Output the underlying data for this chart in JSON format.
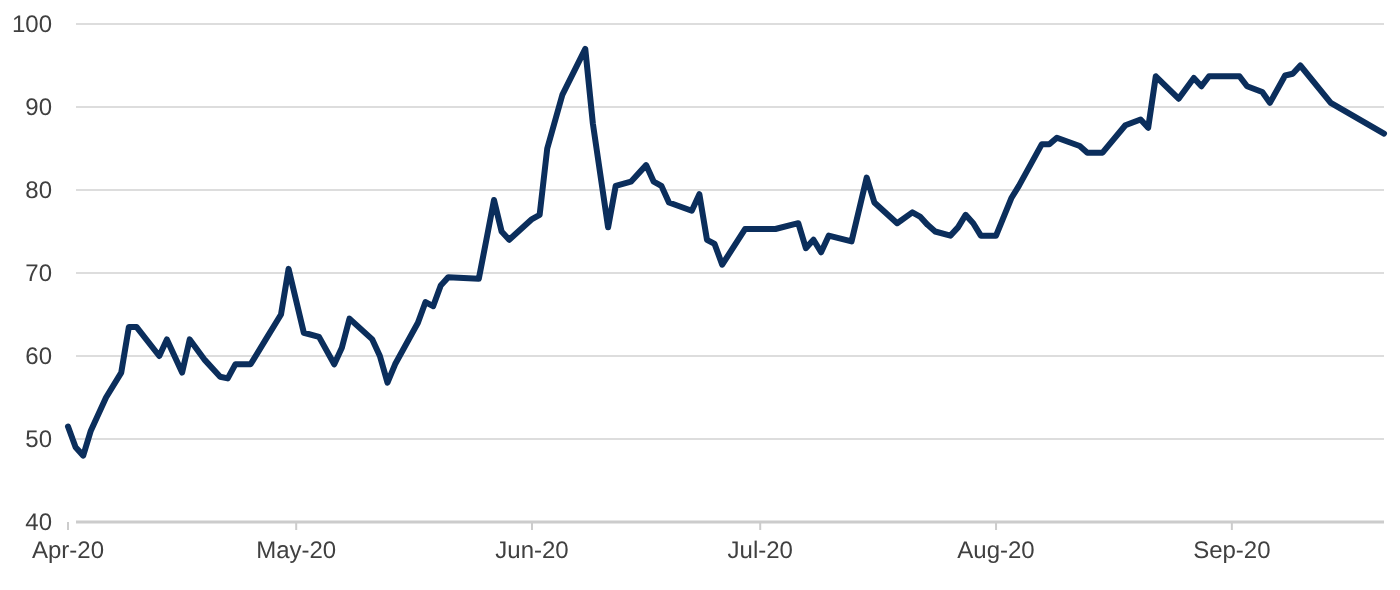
{
  "chart_data": {
    "type": "line",
    "xlim": [
      "2020-04-01",
      "2020-09-21"
    ],
    "xticks": [
      {
        "value": "2020-04-01",
        "label": "Apr-20"
      },
      {
        "value": "2020-05-01",
        "label": "May-20"
      },
      {
        "value": "2020-06-01",
        "label": "Jun-20"
      },
      {
        "value": "2020-07-01",
        "label": "Jul-20"
      },
      {
        "value": "2020-08-01",
        "label": "Aug-20"
      },
      {
        "value": "2020-09-01",
        "label": "Sep-20"
      }
    ],
    "ylim": [
      40,
      100
    ],
    "yticks": [
      40,
      50,
      60,
      70,
      80,
      90,
      100
    ],
    "grid": "y",
    "line_style": "solid",
    "marker": "none",
    "x": [
      "2020-04-01",
      "2020-04-02",
      "2020-04-03",
      "2020-04-04",
      "2020-04-06",
      "2020-04-08",
      "2020-04-09",
      "2020-04-10",
      "2020-04-13",
      "2020-04-14",
      "2020-04-16",
      "2020-04-17",
      "2020-04-19",
      "2020-04-21",
      "2020-04-22",
      "2020-04-23",
      "2020-04-25",
      "2020-04-27",
      "2020-04-29",
      "2020-04-30",
      "2020-05-02",
      "2020-05-04",
      "2020-05-06",
      "2020-05-07",
      "2020-05-08",
      "2020-05-11",
      "2020-05-12",
      "2020-05-13",
      "2020-05-14",
      "2020-05-17",
      "2020-05-18",
      "2020-05-19",
      "2020-05-20",
      "2020-05-21",
      "2020-05-25",
      "2020-05-26",
      "2020-05-27",
      "2020-05-28",
      "2020-05-29",
      "2020-06-01",
      "2020-06-02",
      "2020-06-03",
      "2020-06-05",
      "2020-06-08",
      "2020-06-09",
      "2020-06-11",
      "2020-06-12",
      "2020-06-14",
      "2020-06-16",
      "2020-06-17",
      "2020-06-18",
      "2020-06-19",
      "2020-06-22",
      "2020-06-23",
      "2020-06-24",
      "2020-06-25",
      "2020-06-26",
      "2020-06-29",
      "2020-07-03",
      "2020-07-06",
      "2020-07-07",
      "2020-07-08",
      "2020-07-09",
      "2020-07-10",
      "2020-07-13",
      "2020-07-15",
      "2020-07-16",
      "2020-07-19",
      "2020-07-21",
      "2020-07-22",
      "2020-07-23",
      "2020-07-24",
      "2020-07-26",
      "2020-07-27",
      "2020-07-28",
      "2020-07-29",
      "2020-07-30",
      "2020-08-01",
      "2020-08-03",
      "2020-08-04",
      "2020-08-07",
      "2020-08-08",
      "2020-08-09",
      "2020-08-12",
      "2020-08-13",
      "2020-08-15",
      "2020-08-18",
      "2020-08-20",
      "2020-08-21",
      "2020-08-22",
      "2020-08-25",
      "2020-08-27",
      "2020-08-28",
      "2020-08-29",
      "2020-09-02",
      "2020-09-03",
      "2020-09-05",
      "2020-09-06",
      "2020-09-08",
      "2020-09-09",
      "2020-09-10",
      "2020-09-14",
      "2020-09-21"
    ],
    "series": [
      {
        "color": "#0b2e5c",
        "values": [
          51.5,
          49,
          48,
          51,
          55,
          58,
          63.5,
          63.5,
          60,
          62,
          58,
          62,
          59.5,
          57.5,
          57.3,
          59,
          59,
          62,
          65,
          70.5,
          62.8,
          62.3,
          59,
          61,
          64.5,
          62,
          60,
          56.8,
          59,
          64,
          66.5,
          66,
          68.5,
          69.5,
          69.3,
          74,
          78.8,
          75,
          74,
          76.5,
          77,
          85,
          91.5,
          97,
          88,
          75.5,
          80.5,
          81,
          83,
          81,
          80.5,
          78.5,
          77.5,
          79.5,
          74,
          73.5,
          71,
          75.3,
          75.3,
          76,
          73,
          74,
          72.5,
          74.5,
          73.8,
          81.5,
          78.5,
          76,
          77.3,
          76.8,
          75.8,
          75,
          74.5,
          75.5,
          77,
          76,
          74.5,
          74.5,
          79,
          80.5,
          85.5,
          85.5,
          86.3,
          85.3,
          84.5,
          84.5,
          87.8,
          88.5,
          87.5,
          93.7,
          91,
          93.5,
          92.5,
          93.7,
          93.7,
          92.5,
          91.8,
          90.5,
          93.8,
          94,
          95,
          90.5,
          86.8
        ]
      }
    ]
  }
}
